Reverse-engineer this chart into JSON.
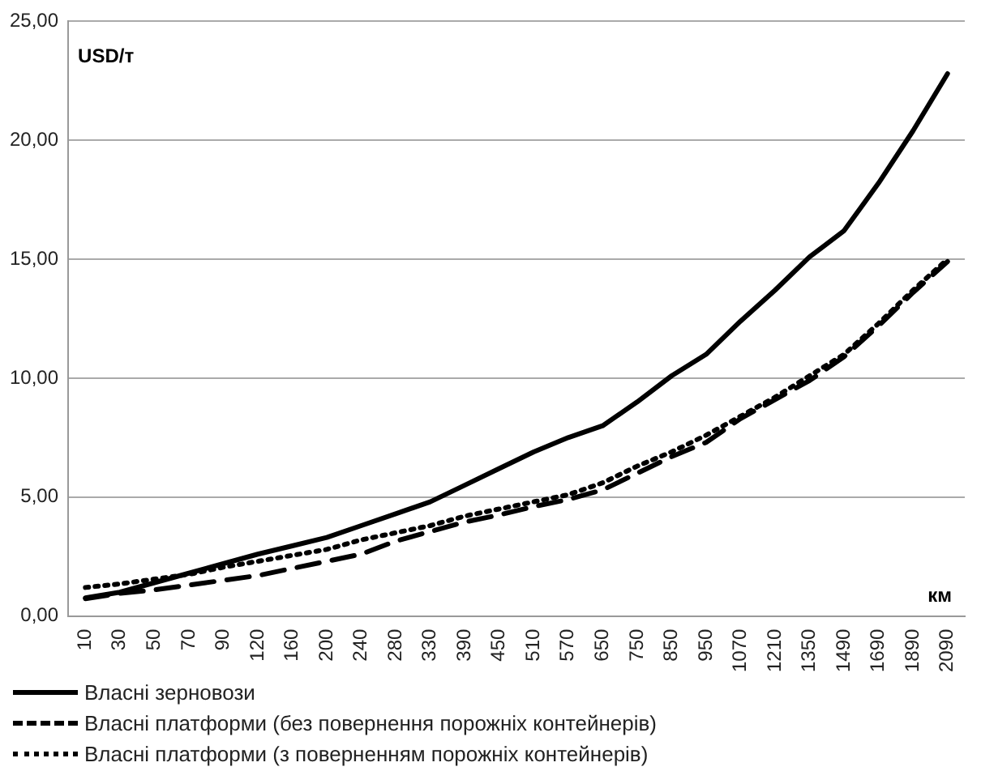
{
  "chart_data": {
    "type": "line",
    "ylabel": "USD/т",
    "xlabel": "км",
    "categories": [
      "10",
      "30",
      "50",
      "70",
      "90",
      "120",
      "160",
      "200",
      "240",
      "280",
      "330",
      "390",
      "450",
      "510",
      "570",
      "650",
      "750",
      "850",
      "950",
      "1070",
      "1210",
      "1350",
      "1490",
      "1690",
      "1890",
      "2090"
    ],
    "series": [
      {
        "name": "Власні зерновози",
        "color": "#000000",
        "line_style": "solid",
        "values": [
          0.76,
          1.0,
          1.4,
          1.8,
          2.2,
          2.6,
          2.95,
          3.3,
          3.8,
          4.3,
          4.8,
          5.5,
          6.2,
          6.9,
          7.5,
          8.0,
          9.0,
          10.1,
          11.0,
          12.4,
          13.7,
          15.1,
          16.2,
          18.2,
          20.4,
          22.8
        ]
      },
      {
        "name": "Власні платформи (без повернення порожніх контейнерів)",
        "color": "#000000",
        "line_style": "dashed",
        "values": [
          0.73,
          0.95,
          1.1,
          1.3,
          1.5,
          1.7,
          2.0,
          2.3,
          2.6,
          3.15,
          3.55,
          3.95,
          4.25,
          4.6,
          4.9,
          5.3,
          6.0,
          6.7,
          7.3,
          8.3,
          9.1,
          9.9,
          10.9,
          12.2,
          13.6,
          14.9
        ]
      },
      {
        "name": "Власні платформи (з поверненням порожніх контейнерів)",
        "color": "#000000",
        "line_style": "dotted",
        "values": [
          1.2,
          1.35,
          1.55,
          1.75,
          2.05,
          2.3,
          2.55,
          2.8,
          3.2,
          3.5,
          3.8,
          4.2,
          4.5,
          4.8,
          5.1,
          5.6,
          6.3,
          6.9,
          7.6,
          8.4,
          9.2,
          10.1,
          11.0,
          12.3,
          13.7,
          15.0
        ]
      }
    ],
    "ylim": [
      0,
      25
    ],
    "yticks": [
      {
        "value": 0,
        "label": "0,00"
      },
      {
        "value": 5,
        "label": "5,00"
      },
      {
        "value": 10,
        "label": "10,00"
      },
      {
        "value": 15,
        "label": "15,00"
      },
      {
        "value": 20,
        "label": "20,00"
      },
      {
        "value": 25,
        "label": "25,00"
      }
    ],
    "grid": "y",
    "legend": "bottom",
    "marker": "none"
  }
}
